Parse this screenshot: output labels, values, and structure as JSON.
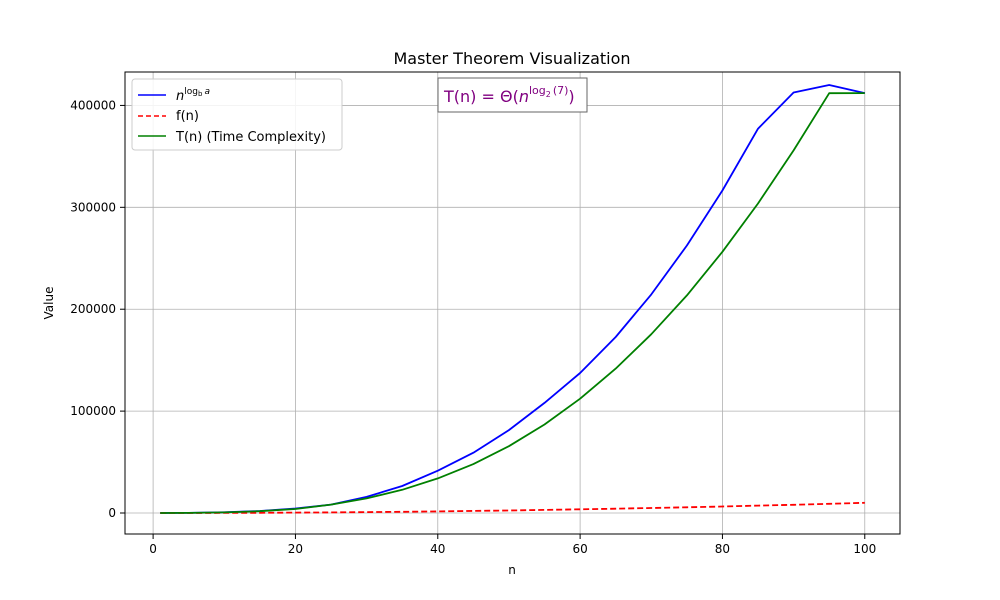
{
  "chart_data": {
    "type": "line",
    "title": "Master Theorem Visualization",
    "xlabel": "n",
    "ylabel": "Value",
    "xlim": [
      -3.95,
      104.95
    ],
    "ylim": [
      -20600,
      432800
    ],
    "xticks": [
      0,
      20,
      40,
      60,
      80,
      100
    ],
    "yticks": [
      0,
      100000,
      200000,
      300000,
      400000
    ],
    "xtick_labels": [
      "0",
      "20",
      "40",
      "60",
      "80",
      "100"
    ],
    "ytick_labels": [
      "0",
      "100000",
      "200000",
      "300000",
      "400000"
    ],
    "grid": true,
    "legend_position": "top-left",
    "annotation": {
      "prefix": "T(n) = Θ(",
      "base": "n",
      "exponent": "log",
      "exponent_sub": "2",
      "exponent_arg": "(7)",
      "suffix": ")",
      "color": "#800080"
    },
    "x": [
      1,
      5,
      10,
      15,
      20,
      25,
      30,
      35,
      40,
      45,
      50,
      55,
      60,
      65,
      70,
      75,
      80,
      85,
      90,
      95,
      100
    ],
    "series": [
      {
        "name_base": "n",
        "name_exp_text": "log",
        "name_exp_sub": "b",
        "name_exp_var": "a",
        "color": "#0000ff",
        "style": "solid",
        "values": [
          1,
          91,
          720,
          2007,
          4444,
          8279,
          15858,
          26550,
          41500,
          59170,
          81380,
          108100,
          137400,
          172700,
          214500,
          262500,
          316500,
          377200,
          412700,
          420000,
          412100
        ]
      },
      {
        "name": "f(n)",
        "color": "#ff0000",
        "style": "dashed",
        "values": [
          1,
          25,
          100,
          225,
          400,
          625,
          900,
          1225,
          1600,
          2025,
          2500,
          3025,
          3600,
          4225,
          4900,
          5625,
          6400,
          7225,
          8100,
          9025,
          10000
        ]
      },
      {
        "name": "T(n) (Time Complexity)",
        "color": "#008000",
        "style": "solid",
        "values": [
          1,
          91,
          631,
          1780,
          3940,
          8279,
          14300,
          22800,
          34000,
          48000,
          65600,
          86900,
          112200,
          141700,
          175500,
          213600,
          256300,
          303700,
          355900,
          412000,
          412100
        ]
      }
    ]
  }
}
